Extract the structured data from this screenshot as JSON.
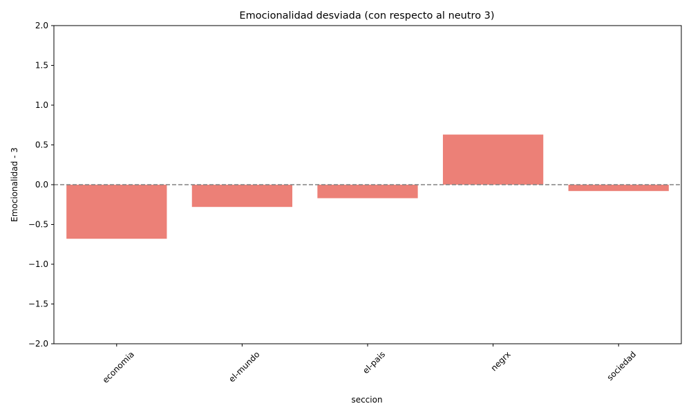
{
  "chart_data": {
    "type": "bar",
    "title": "Emocionalidad desviada (con respecto al neutro 3)",
    "xlabel": "seccion",
    "ylabel": "Emocionalidad - 3",
    "categories": [
      "economia",
      "el-mundo",
      "el-pais",
      "negrx",
      "sociedad"
    ],
    "values": [
      -0.68,
      -0.28,
      -0.17,
      0.63,
      -0.08
    ],
    "ylim": [
      -2.0,
      2.0
    ],
    "yticks": [
      -2.0,
      -1.5,
      -1.0,
      -0.5,
      0.0,
      0.5,
      1.0,
      1.5,
      2.0
    ],
    "ytick_labels": [
      "−2.0",
      "−1.5",
      "−1.0",
      "−0.5",
      "0.0",
      "0.5",
      "1.0",
      "1.5",
      "2.0"
    ],
    "reference_line": 0,
    "grid": false,
    "bar_color": "#ec8077",
    "reference_line_color": "#808080"
  }
}
